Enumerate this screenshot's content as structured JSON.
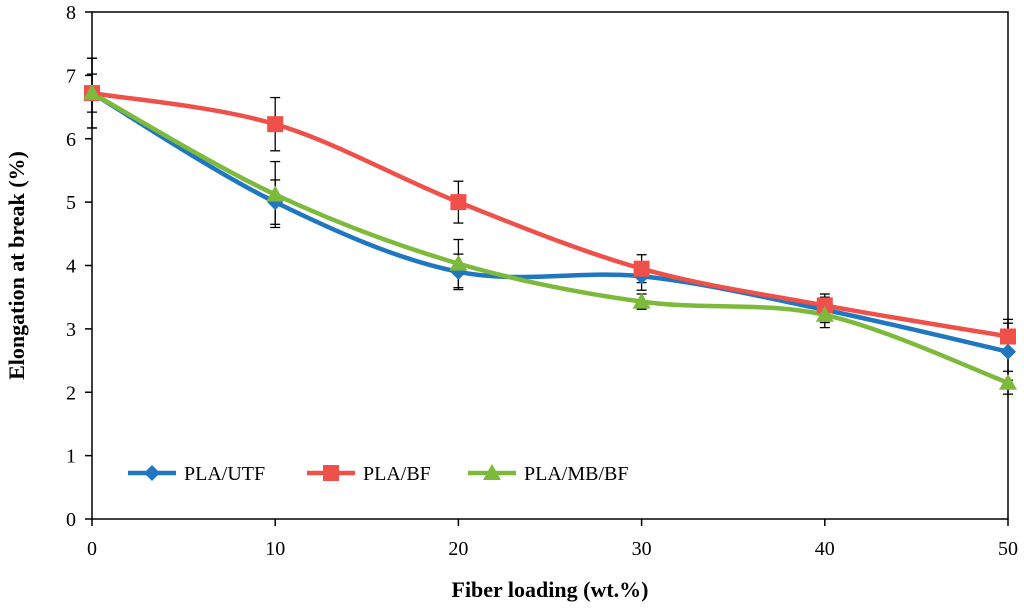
{
  "chart_data": {
    "type": "line",
    "title": "",
    "xlabel": "Fiber loading (wt.%)",
    "ylabel": "Elongation at break (%)",
    "x": [
      0,
      10,
      20,
      30,
      40,
      50
    ],
    "xlim": [
      0,
      50
    ],
    "ylim": [
      0,
      8
    ],
    "xticks": [
      0,
      10,
      20,
      30,
      40,
      50
    ],
    "yticks": [
      0,
      1,
      2,
      3,
      4,
      5,
      6,
      7,
      8
    ],
    "grid": false,
    "smooth": true,
    "legend_position": "bottom-left",
    "series": [
      {
        "name": "PLA/UTF",
        "color": "#1f77c2",
        "marker": "diamond",
        "values": [
          6.72,
          5.0,
          3.9,
          3.83,
          3.3,
          2.64
        ],
        "errors": [
          0.55,
          0.35,
          0.28,
          0.22,
          0.2,
          0.45
        ]
      },
      {
        "name": "PLA/BF",
        "color": "#f0504a",
        "marker": "square",
        "values": [
          6.72,
          6.23,
          5.0,
          3.95,
          3.37,
          2.88
        ],
        "errors": [
          0.55,
          0.42,
          0.33,
          0.22,
          0.18,
          0.27
        ]
      },
      {
        "name": "PLA/MB/BF",
        "color": "#7dba3c",
        "marker": "triangle",
        "values": [
          6.72,
          5.12,
          4.03,
          3.43,
          3.22,
          2.15
        ],
        "errors": [
          0.3,
          0.52,
          0.38,
          0.12,
          0.2,
          0.18
        ]
      }
    ]
  }
}
